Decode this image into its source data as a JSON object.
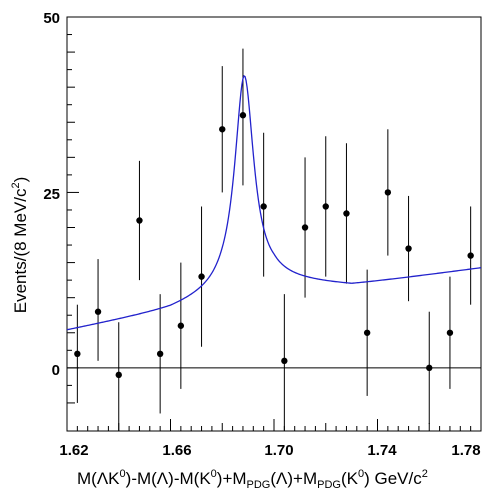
{
  "chart_data": {
    "type": "scatter",
    "title": "",
    "xlabel": "M(ΛK0)-M(Λ)-M(K0)+MPDG(Λ)+MPDG(K0)   GeV/c2",
    "ylabel": "Events/(8 MeV/c2)",
    "xlim": [
      1.62,
      1.78
    ],
    "ylim": [
      -9,
      50
    ],
    "x_ticks": [
      "1.62",
      "1.66",
      "1.70",
      "1.74",
      "1.78"
    ],
    "y_ticks": [
      "0",
      "25",
      "50"
    ],
    "zero_line": true,
    "series": [
      {
        "style": "points-with-error-bars",
        "color": "#000000",
        "points": [
          {
            "x": 1.624,
            "y": 2,
            "lo": -5,
            "hi": 9
          },
          {
            "x": 1.632,
            "y": 8,
            "lo": 1,
            "hi": 15.5
          },
          {
            "x": 1.64,
            "y": -1,
            "lo": -9,
            "hi": 6.5
          },
          {
            "x": 1.648,
            "y": 21,
            "lo": 12.5,
            "hi": 29.5
          },
          {
            "x": 1.656,
            "y": 2,
            "lo": -6.5,
            "hi": 10.5
          },
          {
            "x": 1.664,
            "y": 6,
            "lo": -3,
            "hi": 15
          },
          {
            "x": 1.672,
            "y": 13,
            "lo": 3,
            "hi": 23
          },
          {
            "x": 1.68,
            "y": 34,
            "lo": 25,
            "hi": 43
          },
          {
            "x": 1.688,
            "y": 36,
            "lo": 26,
            "hi": 45.5
          },
          {
            "x": 1.696,
            "y": 23,
            "lo": 13,
            "hi": 33.5
          },
          {
            "x": 1.704,
            "y": 1,
            "lo": -9,
            "hi": 10.5
          },
          {
            "x": 1.712,
            "y": 20,
            "lo": 10,
            "hi": 30
          },
          {
            "x": 1.72,
            "y": 23,
            "lo": 13,
            "hi": 33
          },
          {
            "x": 1.728,
            "y": 22,
            "lo": 12,
            "hi": 32
          },
          {
            "x": 1.736,
            "y": 5,
            "lo": -4,
            "hi": 14
          },
          {
            "x": 1.744,
            "y": 25,
            "lo": 16,
            "hi": 34
          },
          {
            "x": 1.752,
            "y": 17,
            "lo": 9.5,
            "hi": 24.5
          },
          {
            "x": 1.76,
            "y": 0,
            "lo": -8,
            "hi": 8
          },
          {
            "x": 1.768,
            "y": 5,
            "lo": -3,
            "hi": 13
          },
          {
            "x": 1.776,
            "y": 16,
            "lo": 9,
            "hi": 23
          }
        ]
      },
      {
        "style": "fit-curve",
        "color": "#2222cc",
        "peak": {
          "mass": 1.6885,
          "width": 0.009,
          "amplitude": 30.4
        },
        "background_points": [
          {
            "x": 1.62,
            "y": 5.3
          },
          {
            "x": 1.66,
            "y": 8.2
          },
          {
            "x": 1.68,
            "y": 10.5
          },
          {
            "x": 1.7,
            "y": 12.2
          },
          {
            "x": 1.73,
            "y": 11.7
          },
          {
            "x": 1.78,
            "y": 14.2
          }
        ]
      }
    ]
  }
}
